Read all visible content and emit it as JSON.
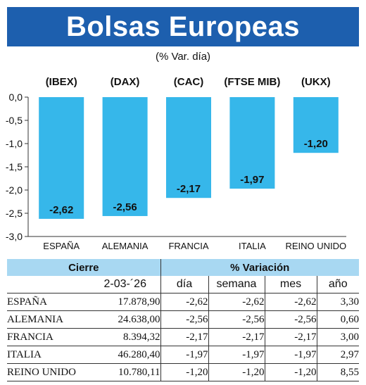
{
  "header": {
    "title": "Bolsas Europeas",
    "subtitle": "(% Var. día)"
  },
  "colors": {
    "title_bg": "#1d5fae",
    "bar": "#36b7ea",
    "table_header_bg": "#a8d8f2"
  },
  "chart_data": {
    "type": "bar",
    "index_labels": [
      "(IBEX)",
      "(DAX)",
      "(CAC)",
      "(FTSE MIB)",
      "(UKX)"
    ],
    "categories": [
      "ESPAÑA",
      "ALEMANIA",
      "FRANCIA",
      "ITALIA",
      "REINO UNIDO"
    ],
    "values": [
      -2.62,
      -2.56,
      -2.17,
      -1.97,
      -1.2
    ],
    "value_labels": [
      "-2,62",
      "-2,56",
      "-2,17",
      "-1,97",
      "-1,20"
    ],
    "y_ticks": [
      "0,0",
      "-0,5",
      "-1,0",
      "-1,5",
      "-2,0",
      "-2,5",
      "-3,0"
    ],
    "ylim": [
      -3.0,
      0.0
    ],
    "grid": false
  },
  "table": {
    "header": {
      "cierre": "Cierre",
      "variacion": "% Variación"
    },
    "subheader": {
      "date": "2-03-´26",
      "dia": "día",
      "semana": "semana",
      "mes": "mes",
      "ano": "año"
    },
    "rows": [
      {
        "name": "ESPAÑA",
        "cierre": "17.878,90",
        "dia": "-2,62",
        "semana": "-2,62",
        "mes": "-2,62",
        "ano": "3,30"
      },
      {
        "name": "ALEMANIA",
        "cierre": "24.638,00",
        "dia": "-2,56",
        "semana": "-2,56",
        "mes": "-2,56",
        "ano": "0,60"
      },
      {
        "name": "FRANCIA",
        "cierre": "8.394,32",
        "dia": "-2,17",
        "semana": "-2,17",
        "mes": "-2,17",
        "ano": "3,00"
      },
      {
        "name": "ITALIA",
        "cierre": "46.280,40",
        "dia": "-1,97",
        "semana": "-1,97",
        "mes": "-1,97",
        "ano": "2,97"
      },
      {
        "name": "REINO UNIDO",
        "cierre": "10.780,11",
        "dia": "-1,20",
        "semana": "-1,20",
        "mes": "-1,20",
        "ano": "8,55"
      }
    ]
  }
}
